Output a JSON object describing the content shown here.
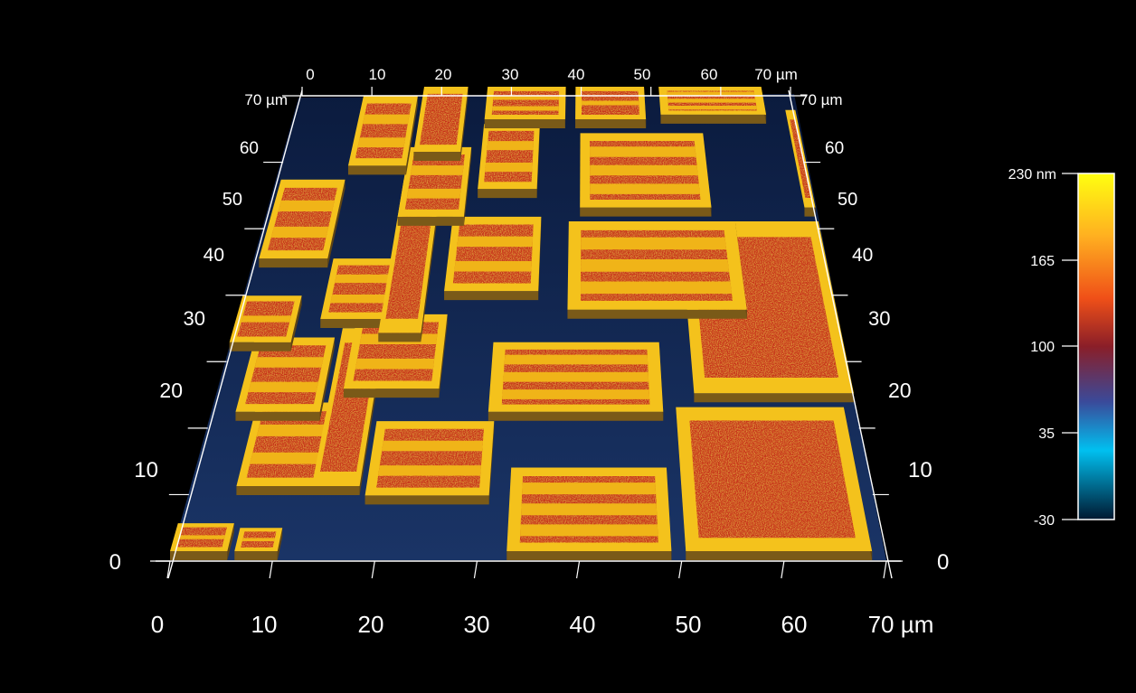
{
  "image": {
    "description_free": true,
    "colors": {
      "background": "#000000",
      "substrate": "#0a1e44",
      "pad_fill": "#c8321c",
      "pad_rim": "#f4c21c",
      "stripe": "#f0b418",
      "axis": "#ffffff"
    }
  },
  "axes": {
    "front": {
      "ticks": [
        "0",
        "10",
        "20",
        "30",
        "40",
        "50",
        "60"
      ],
      "end_label": "70 µm"
    },
    "back": {
      "ticks": [
        "0",
        "10",
        "20",
        "30",
        "40",
        "50",
        "60"
      ],
      "end_label": "70 µm"
    },
    "left": {
      "ticks": [
        "0",
        "10",
        "20",
        "30",
        "40",
        "50",
        "60"
      ],
      "end_label": "70 µm"
    },
    "right": {
      "ticks": [
        "0",
        "10",
        "20",
        "30",
        "40",
        "50",
        "60"
      ],
      "end_label": "70 µm"
    }
  },
  "colorbar": {
    "ticks": [
      "230 nm",
      "165",
      "100",
      "35",
      "-30"
    ],
    "stops": [
      "#ffff10",
      "#ffb020",
      "#f05018",
      "#8a1e28",
      "#3a4a9a",
      "#00c0f0",
      "#001830"
    ]
  }
}
